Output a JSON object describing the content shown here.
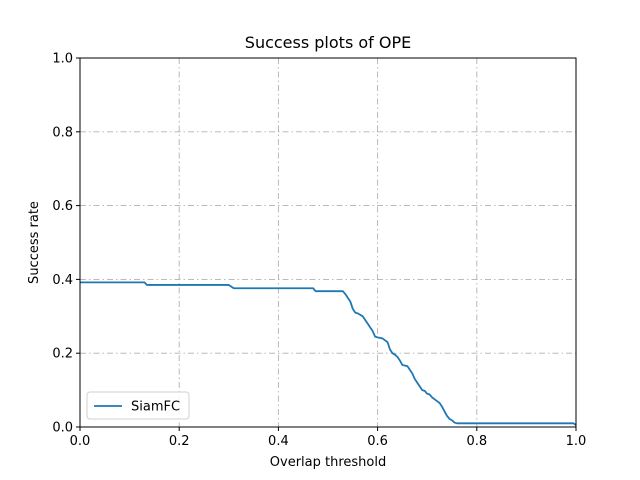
{
  "chart_data": {
    "type": "line",
    "title": "Success plots of OPE",
    "xlabel": "Overlap threshold",
    "ylabel": "Success rate",
    "xlim": [
      0,
      1
    ],
    "ylim": [
      0,
      1
    ],
    "xticks": [
      "0.0",
      "0.2",
      "0.4",
      "0.6",
      "0.8",
      "1.0"
    ],
    "yticks": [
      "0.0",
      "0.2",
      "0.4",
      "0.6",
      "0.8",
      "1.0"
    ],
    "grid": true,
    "legend_position": "lower-left",
    "series": [
      {
        "name": "SiamFC",
        "color": "#1f77b4",
        "x": [
          0,
          0.13,
          0.135,
          0.3,
          0.31,
          0.47,
          0.475,
          0.53,
          0.535,
          0.54,
          0.545,
          0.55,
          0.555,
          0.56,
          0.57,
          0.575,
          0.58,
          0.585,
          0.59,
          0.595,
          0.6,
          0.61,
          0.615,
          0.62,
          0.625,
          0.63,
          0.635,
          0.64,
          0.645,
          0.65,
          0.66,
          0.665,
          0.67,
          0.675,
          0.68,
          0.685,
          0.69,
          0.695,
          0.7,
          0.705,
          0.71,
          0.715,
          0.72,
          0.725,
          0.73,
          0.735,
          0.74,
          0.745,
          0.75,
          0.755,
          0.76,
          0.765,
          0.77,
          0.995,
          1.0
        ],
        "y": [
          0.392,
          0.392,
          0.385,
          0.385,
          0.376,
          0.376,
          0.368,
          0.368,
          0.36,
          0.35,
          0.34,
          0.32,
          0.31,
          0.308,
          0.3,
          0.29,
          0.28,
          0.27,
          0.26,
          0.245,
          0.243,
          0.24,
          0.235,
          0.23,
          0.21,
          0.2,
          0.196,
          0.19,
          0.18,
          0.168,
          0.165,
          0.155,
          0.145,
          0.13,
          0.12,
          0.11,
          0.1,
          0.098,
          0.09,
          0.088,
          0.08,
          0.075,
          0.07,
          0.065,
          0.055,
          0.042,
          0.03,
          0.022,
          0.018,
          0.012,
          0.01,
          0.01,
          0.01,
          0.01,
          0.005
        ]
      }
    ]
  }
}
